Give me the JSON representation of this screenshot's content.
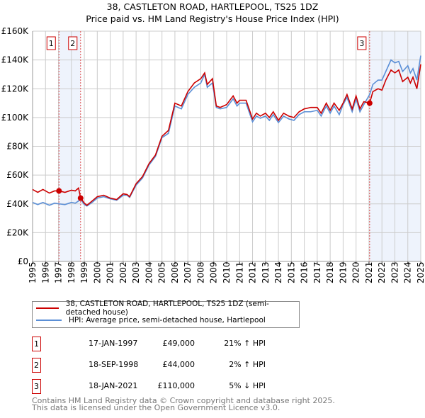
{
  "chart_data": {
    "type": "line",
    "title": "38, CASTLETON ROAD, HARTLEPOOL, TS25 1DZ",
    "subtitle": "Price paid vs. HM Land Registry's House Price Index (HPI)",
    "xlim": [
      1995,
      2025
    ],
    "ylim": [
      0,
      160000
    ],
    "x_ticks": [
      "1995",
      "1996",
      "1997",
      "1998",
      "1999",
      "2000",
      "2001",
      "2002",
      "2003",
      "2004",
      "2005",
      "2006",
      "2007",
      "2008",
      "2009",
      "2010",
      "2011",
      "2012",
      "2013",
      "2014",
      "2015",
      "2016",
      "2017",
      "2018",
      "2019",
      "2020",
      "2021",
      "2022",
      "2023",
      "2024",
      "2025"
    ],
    "y_ticks": [
      {
        "v": 0,
        "label": "£0"
      },
      {
        "v": 20000,
        "label": "£20K"
      },
      {
        "v": 40000,
        "label": "£40K"
      },
      {
        "v": 60000,
        "label": "£60K"
      },
      {
        "v": 80000,
        "label": "£80K"
      },
      {
        "v": 100000,
        "label": "£100K"
      },
      {
        "v": 120000,
        "label": "£120K"
      },
      {
        "v": 140000,
        "label": "£140K"
      },
      {
        "v": 160000,
        "label": "£160K"
      }
    ],
    "grid": true,
    "series": [
      {
        "name": "38, CASTLETON ROAD, HARTLEPOOL, TS25 1DZ (semi-detached house)",
        "color": "#cc0000",
        "x": [
          1995,
          1995.4,
          1995.8,
          1996.3,
          1996.7,
          1997.05,
          1997.5,
          1998,
          1998.3,
          1998.55,
          1998.72,
          1999,
          1999.2,
          1999.6,
          2000,
          2000.5,
          2001,
          2001.5,
          2002,
          2002.3,
          2002.5,
          2003,
          2003.5,
          2004,
          2004.5,
          2005,
          2005.5,
          2006,
          2006.5,
          2007,
          2007.5,
          2008,
          2008.3,
          2008.5,
          2008.9,
          2009.2,
          2009.5,
          2010,
          2010.5,
          2010.8,
          2011,
          2011.5,
          2012,
          2012.3,
          2012.6,
          2013,
          2013.3,
          2013.6,
          2014,
          2014.4,
          2014.8,
          2015.2,
          2015.6,
          2016,
          2016.5,
          2017,
          2017.3,
          2017.7,
          2018,
          2018.3,
          2018.7,
          2019,
          2019.3,
          2019.7,
          2020,
          2020.3,
          2020.6,
          2021.05,
          2021.3,
          2021.7,
          2022,
          2022.3,
          2022.7,
          2023,
          2023.3,
          2023.6,
          2024,
          2024.2,
          2024.4,
          2024.7,
          2025
        ],
        "y": [
          50000,
          48000,
          50000,
          47500,
          49000,
          49000,
          48000,
          49500,
          49000,
          51000,
          44000,
          40500,
          39000,
          42000,
          45000,
          46000,
          44000,
          43000,
          47000,
          46500,
          45000,
          54000,
          59000,
          68000,
          74000,
          87000,
          91000,
          110000,
          108000,
          118000,
          124000,
          127000,
          131000,
          123000,
          127000,
          108000,
          107000,
          109000,
          115000,
          110000,
          112000,
          112000,
          99000,
          103000,
          101000,
          103000,
          100000,
          104000,
          98000,
          103000,
          101000,
          100000,
          104000,
          106000,
          107000,
          107000,
          103000,
          110000,
          105000,
          110000,
          105000,
          110000,
          116000,
          106000,
          115000,
          106000,
          111000,
          110000,
          118000,
          120000,
          119000,
          126000,
          133000,
          131000,
          133000,
          125000,
          128000,
          124000,
          128000,
          120000,
          137000
        ]
      },
      {
        "name": "HPI: Average price, semi-detached house, Hartlepool",
        "color": "#5b8fd6",
        "x": [
          1995,
          1995.4,
          1995.8,
          1996.3,
          1996.7,
          1997.05,
          1997.5,
          1998,
          1998.3,
          1998.55,
          1998.72,
          1999,
          1999.2,
          1999.6,
          2000,
          2000.5,
          2001,
          2001.5,
          2002,
          2002.3,
          2002.5,
          2003,
          2003.5,
          2004,
          2004.5,
          2005,
          2005.5,
          2006,
          2006.5,
          2007,
          2007.5,
          2008,
          2008.3,
          2008.5,
          2008.9,
          2009.2,
          2009.5,
          2010,
          2010.5,
          2010.8,
          2011,
          2011.5,
          2012,
          2012.3,
          2012.6,
          2013,
          2013.3,
          2013.6,
          2014,
          2014.4,
          2014.8,
          2015.2,
          2015.6,
          2016,
          2016.5,
          2017,
          2017.3,
          2017.7,
          2018,
          2018.3,
          2018.7,
          2019,
          2019.3,
          2019.7,
          2020,
          2020.3,
          2020.6,
          2021.05,
          2021.3,
          2021.7,
          2022,
          2022.3,
          2022.7,
          2023,
          2023.3,
          2023.6,
          2024,
          2024.2,
          2024.4,
          2024.7,
          2025
        ],
        "y": [
          41000,
          39500,
          41000,
          39000,
          40500,
          40000,
          39500,
          41000,
          40500,
          42000,
          43000,
          39500,
          38500,
          41000,
          44000,
          45000,
          43500,
          42500,
          46000,
          46000,
          44500,
          53000,
          58000,
          67000,
          73000,
          86000,
          89000,
          108000,
          106000,
          116000,
          121000,
          124000,
          130000,
          121000,
          124000,
          107000,
          106000,
          107000,
          113000,
          108000,
          110000,
          110000,
          97000,
          101000,
          99500,
          101000,
          98000,
          102000,
          96500,
          101000,
          99000,
          98000,
          102000,
          104000,
          104000,
          105000,
          101000,
          108000,
          103000,
          108000,
          102000,
          109000,
          114000,
          104000,
          113000,
          104000,
          109000,
          116000,
          123000,
          126000,
          126000,
          132000,
          140000,
          138000,
          139000,
          132000,
          136000,
          131000,
          134000,
          126000,
          143000
        ]
      }
    ],
    "annotations": [
      {
        "label": "1",
        "x": 1997.04,
        "price": 49000
      },
      {
        "label": "2",
        "x": 1998.71,
        "price": 44000
      },
      {
        "label": "3",
        "x": 2021.05,
        "price": 110000
      }
    ],
    "shaded_ranges": [
      [
        1997.04,
        1998.71
      ],
      [
        2021.05,
        2025
      ]
    ]
  },
  "legend": {
    "red": "38, CASTLETON ROAD, HARTLEPOOL, TS25 1DZ (semi-detached house)",
    "blue": "HPI: Average price, semi-detached house, Hartlepool"
  },
  "transactions": [
    {
      "num": "1",
      "date": "17-JAN-1997",
      "price": "£49,000",
      "hpi": "21% ↑ HPI"
    },
    {
      "num": "2",
      "date": "18-SEP-1998",
      "price": "£44,000",
      "hpi": "2% ↑ HPI"
    },
    {
      "num": "3",
      "date": "18-JAN-2021",
      "price": "£110,000",
      "hpi": "5% ↓ HPI"
    }
  ],
  "footer": {
    "line1": "Contains HM Land Registry data © Crown copyright and database right 2025.",
    "line2": "This data is licensed under the Open Government Licence v3.0."
  }
}
